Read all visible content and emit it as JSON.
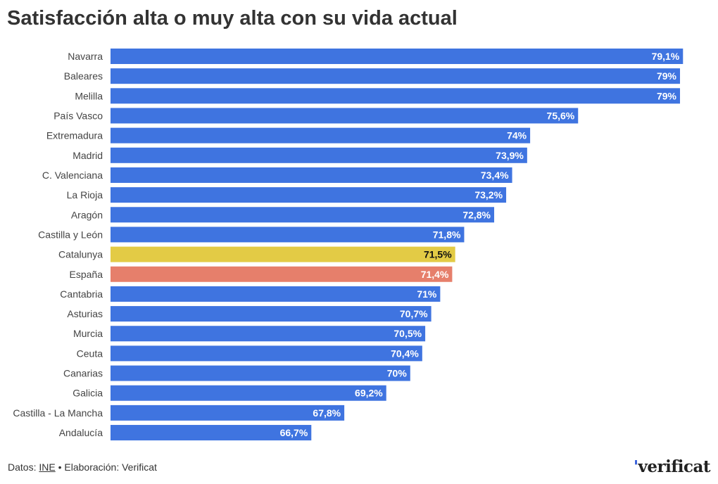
{
  "title": "Satisfacción alta o muy alta con su vida actual",
  "footer": {
    "prefix": "Datos: ",
    "source": "INE",
    "suffix": " • Elaboración: Verificat"
  },
  "logo": "verificat",
  "colors": {
    "default": "#3f74e0",
    "highlight": "#e3cb45",
    "reference": "#e67f6b"
  },
  "chart_data": {
    "type": "bar",
    "orientation": "horizontal",
    "title": "Satisfacción alta o muy alta con su vida actual",
    "xlim": [
      60,
      80
    ],
    "categories": [
      "Navarra",
      "Baleares",
      "Melilla",
      "País Vasco",
      "Extremadura",
      "Madrid",
      "C. Valenciana",
      "La Rioja",
      "Aragón",
      "Castilla y León",
      "Catalunya",
      "España",
      "Cantabria",
      "Asturias",
      "Murcia",
      "Ceuta",
      "Canarias",
      "Galicia",
      "Castilla - La Mancha",
      "Andalucía"
    ],
    "values": [
      79.1,
      79,
      79,
      75.6,
      74,
      73.9,
      73.4,
      73.2,
      72.8,
      71.8,
      71.5,
      71.4,
      71,
      70.7,
      70.5,
      70.4,
      70,
      69.2,
      67.8,
      66.7
    ],
    "labels": [
      "79,1%",
      "79%",
      "79%",
      "75,6%",
      "74%",
      "73,9%",
      "73,4%",
      "73,2%",
      "72,8%",
      "71,8%",
      "71,5%",
      "71,4%",
      "71%",
      "70,7%",
      "70,5%",
      "70,4%",
      "70%",
      "69,2%",
      "67,8%",
      "66,7%"
    ],
    "highlight": {
      "Catalunya": "highlight",
      "España": "reference"
    }
  }
}
